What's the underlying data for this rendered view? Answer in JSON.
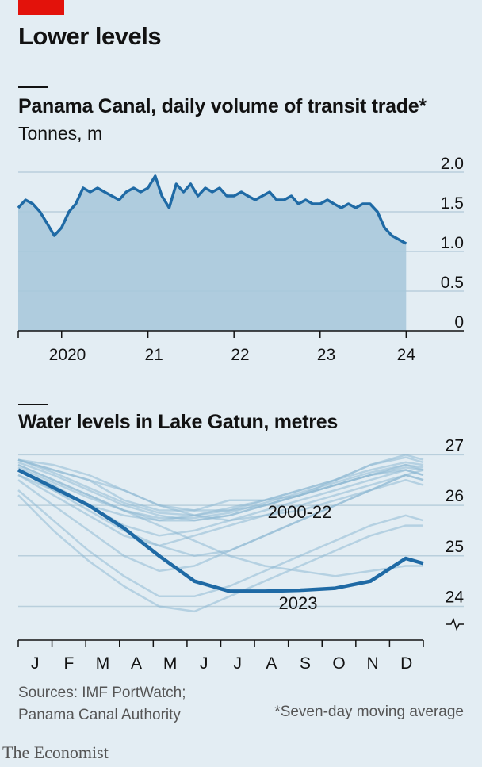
{
  "headline": "Lower levels",
  "footer": {
    "sources_line1": "Sources: IMF PortWatch;",
    "sources_line2": "Panama Canal Authority",
    "footnote": "*Seven-day moving average",
    "brand": "The Economist"
  },
  "colors": {
    "background": "#e3edf3",
    "accent_red": "#e3120b",
    "line_dark": "#1f6aa5",
    "area_fill": "#a9c8dc",
    "line_light": "#8fbad4",
    "grid": "#b9cfdc"
  },
  "chart_data": [
    {
      "type": "area",
      "title": "Panama Canal, daily volume of transit trade*",
      "subtitle": "Tonnes, m",
      "ylim": [
        0,
        2.0
      ],
      "yticks": [
        0,
        0.5,
        1.0,
        1.5,
        2.0
      ],
      "ytick_labels": [
        "0",
        "0.5",
        "1.0",
        "1.5",
        "2.0"
      ],
      "xlim": [
        "2019-07-01",
        "2024-01-20"
      ],
      "xticks": [
        {
          "label": "2020",
          "year": 2020
        },
        {
          "label": "21",
          "year": 2021
        },
        {
          "label": "22",
          "year": 2022
        },
        {
          "label": "23",
          "year": 2023
        },
        {
          "label": "24",
          "year": 2024
        }
      ],
      "grid": true,
      "series": [
        {
          "x": [
            "2019-07-01",
            "2019-08-01",
            "2019-09-01",
            "2019-10-01",
            "2019-11-01",
            "2019-12-01",
            "2020-01-01",
            "2020-02-01",
            "2020-03-01",
            "2020-04-01",
            "2020-05-01",
            "2020-06-01",
            "2020-07-01",
            "2020-08-01",
            "2020-09-01",
            "2020-10-01",
            "2020-11-01",
            "2020-12-01",
            "2021-01-01",
            "2021-02-01",
            "2021-03-01",
            "2021-04-01",
            "2021-05-01",
            "2021-06-01",
            "2021-07-01",
            "2021-08-01",
            "2021-09-01",
            "2021-10-01",
            "2021-11-01",
            "2021-12-01",
            "2022-01-01",
            "2022-02-01",
            "2022-03-01",
            "2022-04-01",
            "2022-05-01",
            "2022-06-01",
            "2022-07-01",
            "2022-08-01",
            "2022-09-01",
            "2022-10-01",
            "2022-11-01",
            "2022-12-01",
            "2023-01-01",
            "2023-02-01",
            "2023-03-01",
            "2023-04-01",
            "2023-05-01",
            "2023-06-01",
            "2023-07-01",
            "2023-08-01",
            "2023-09-01",
            "2023-10-01",
            "2023-11-01",
            "2023-12-01",
            "2024-01-01"
          ],
          "values": [
            1.55,
            1.65,
            1.6,
            1.5,
            1.35,
            1.2,
            1.3,
            1.5,
            1.6,
            1.8,
            1.75,
            1.8,
            1.75,
            1.7,
            1.65,
            1.75,
            1.8,
            1.75,
            1.8,
            1.95,
            1.7,
            1.55,
            1.85,
            1.75,
            1.85,
            1.7,
            1.8,
            1.75,
            1.8,
            1.7,
            1.7,
            1.75,
            1.7,
            1.65,
            1.7,
            1.75,
            1.65,
            1.65,
            1.7,
            1.6,
            1.65,
            1.6,
            1.6,
            1.65,
            1.6,
            1.55,
            1.6,
            1.55,
            1.6,
            1.6,
            1.5,
            1.3,
            1.2,
            1.15,
            1.1
          ]
        }
      ]
    },
    {
      "type": "line",
      "title": "Water levels in Lake Gatun, metres",
      "ylim": [
        23.6,
        27.1
      ],
      "yticks": [
        24,
        25,
        26,
        27
      ],
      "ytick_labels": [
        "24",
        "25",
        "26",
        "27"
      ],
      "axis_break": true,
      "xlabels": [
        "J",
        "F",
        "M",
        "A",
        "M",
        "J",
        "J",
        "A",
        "S",
        "O",
        "N",
        "D"
      ],
      "grid": true,
      "annotations": [
        "2000-22",
        "2023"
      ],
      "month_axis": [
        1,
        2,
        3,
        4,
        5,
        6,
        7,
        8,
        9,
        10,
        11,
        12,
        12.5
      ],
      "series": [
        {
          "name": "2023",
          "values": [
            26.7,
            26.35,
            26.0,
            25.55,
            25.0,
            24.5,
            24.3,
            24.3,
            24.32,
            24.36,
            24.5,
            24.95,
            24.85
          ]
        },
        {
          "values": [
            26.9,
            26.7,
            26.5,
            26.1,
            25.9,
            25.9,
            26.1,
            26.1,
            26.2,
            26.4,
            26.6,
            26.8,
            26.7
          ]
        },
        {
          "values": [
            26.8,
            26.5,
            26.2,
            25.9,
            25.7,
            25.7,
            25.8,
            26.0,
            26.2,
            26.4,
            26.6,
            26.7,
            26.6
          ]
        },
        {
          "values": [
            26.9,
            26.8,
            26.6,
            26.3,
            26.0,
            25.9,
            25.9,
            26.1,
            26.3,
            26.5,
            26.8,
            26.95,
            26.85
          ]
        },
        {
          "values": [
            26.7,
            26.4,
            26.0,
            25.6,
            25.4,
            25.5,
            25.7,
            25.9,
            26.1,
            26.3,
            26.5,
            26.7,
            26.6
          ]
        },
        {
          "values": [
            26.6,
            26.2,
            25.8,
            25.4,
            25.2,
            25.4,
            25.6,
            25.8,
            26.0,
            26.2,
            26.4,
            26.6,
            26.5
          ]
        },
        {
          "values": [
            26.5,
            26.0,
            25.5,
            25.0,
            24.7,
            24.8,
            25.1,
            25.4,
            25.7,
            26.0,
            26.3,
            26.6,
            26.5
          ]
        },
        {
          "values": [
            26.3,
            25.7,
            25.1,
            24.6,
            24.2,
            24.2,
            24.4,
            24.7,
            25.0,
            25.3,
            25.6,
            25.8,
            25.7
          ]
        },
        {
          "values": [
            26.2,
            25.5,
            24.9,
            24.4,
            24.0,
            23.9,
            24.2,
            24.5,
            24.8,
            25.1,
            25.4,
            25.6,
            25.6
          ]
        },
        {
          "values": [
            26.8,
            26.5,
            26.2,
            25.9,
            25.6,
            25.3,
            25.0,
            24.8,
            24.7,
            24.6,
            24.7,
            24.8,
            24.8
          ]
        },
        {
          "values": [
            26.9,
            26.7,
            26.5,
            26.3,
            26.0,
            25.8,
            25.7,
            25.8,
            25.9,
            26.1,
            26.3,
            26.6,
            26.7
          ]
        },
        {
          "values": [
            26.7,
            26.3,
            25.9,
            25.5,
            25.2,
            25.0,
            25.1,
            25.4,
            25.7,
            26.0,
            26.3,
            26.5,
            26.4
          ]
        },
        {
          "values": [
            26.85,
            26.6,
            26.3,
            26.0,
            25.8,
            25.7,
            25.8,
            26.0,
            26.2,
            26.5,
            26.8,
            27.0,
            26.9
          ]
        },
        {
          "values": [
            26.6,
            26.3,
            26.0,
            25.8,
            25.7,
            25.8,
            25.9,
            26.0,
            26.2,
            26.4,
            26.6,
            26.75,
            26.7
          ]
        },
        {
          "values": [
            26.9,
            26.65,
            26.35,
            26.05,
            25.85,
            25.8,
            25.95,
            26.1,
            26.3,
            26.5,
            26.7,
            26.85,
            26.8
          ]
        },
        {
          "values": [
            26.75,
            26.45,
            26.15,
            25.9,
            25.75,
            25.75,
            25.85,
            26.05,
            26.25,
            26.45,
            26.65,
            26.8,
            26.75
          ]
        }
      ]
    }
  ]
}
